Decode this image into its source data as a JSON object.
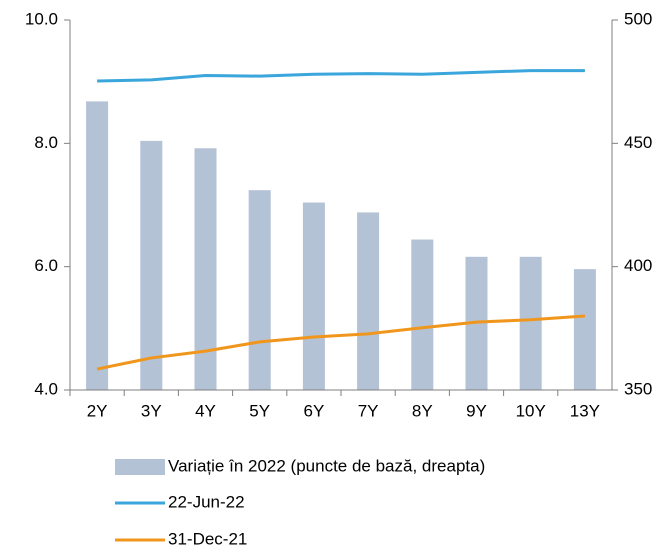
{
  "chart_data": {
    "type": "bar_line",
    "categories": [
      "2Y",
      "3Y",
      "4Y",
      "5Y",
      "6Y",
      "7Y",
      "8Y",
      "9Y",
      "10Y",
      "13Y"
    ],
    "series": [
      {
        "name": "Variație în 2022 (puncte de bază, dreapta)",
        "type": "bar",
        "axis": "y2",
        "color": "#b4c2d6",
        "values": [
          467,
          451,
          448,
          431,
          426,
          422,
          411,
          404,
          404,
          399
        ]
      },
      {
        "name": "22-Jun-22",
        "type": "line",
        "color": "#3aa6db",
        "values": [
          9.01,
          9.03,
          9.1,
          9.09,
          9.12,
          9.13,
          9.12,
          9.15,
          9.18,
          9.18
        ]
      },
      {
        "name": "31-Dec-21",
        "type": "line",
        "color": "#f0961c",
        "values": [
          4.34,
          4.52,
          4.63,
          4.78,
          4.86,
          4.91,
          5.01,
          5.1,
          5.14,
          5.2
        ]
      }
    ],
    "ylim": [
      4,
      10
    ],
    "yticks": [
      {
        "value": 4,
        "label": "4.0"
      },
      {
        "value": 6,
        "label": "6.0"
      },
      {
        "value": 8,
        "label": "8.0"
      },
      {
        "value": 10,
        "label": "10.0"
      }
    ],
    "y2lim": [
      350,
      500
    ],
    "y2ticks": [
      350,
      400,
      450,
      500
    ],
    "legend": "bottom"
  }
}
